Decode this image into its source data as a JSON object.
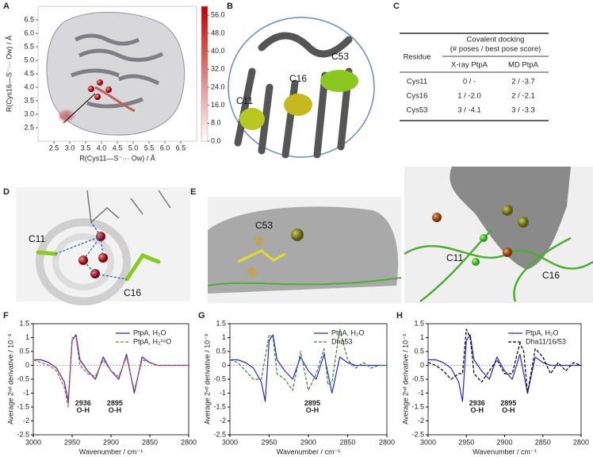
{
  "panel_labels": [
    "A",
    "B",
    "C",
    "D",
    "E",
    "F",
    "G",
    "H"
  ],
  "panel_b": {
    "labels": [
      "C11",
      "C16",
      "C53"
    ]
  },
  "table": {
    "header_group": "Covalent docking",
    "header_sub": "(# poses / best pose score)",
    "columns": [
      "Residue",
      "X-ray PtpA",
      "MD PtpA"
    ],
    "rows": [
      [
        "Cys11",
        "0 / -",
        "2 / -3.7"
      ],
      [
        "Cys16",
        "1 / -2.0",
        "2 / -2.1"
      ],
      [
        "Cys53",
        "3 / -4.1",
        "3 / -3.3"
      ]
    ]
  },
  "panel_d": {
    "labels": [
      "C11",
      "C16"
    ]
  },
  "panel_e": {
    "labels": [
      "C53",
      "C11",
      "C16"
    ]
  },
  "chart_data": [
    {
      "type": "heatmap",
      "xlabel": "R(Cys11—S⁻··· Ow) / Å",
      "ylabel": "R(Cys16—S⁻··· Ow) / Å",
      "xlim": [
        2,
        7
      ],
      "ylim": [
        2,
        7
      ],
      "xticks": [
        2.5,
        {
          "value": 3,
          "label": "3.0"
        },
        3.5,
        {
          "value": 4,
          "label": "4.0"
        },
        4.5,
        {
          "value": 5,
          "label": "5.0"
        },
        5.5,
        {
          "value": 6,
          "label": "6.0"
        },
        6.5
      ],
      "yticks": [
        2.5,
        {
          "value": 3,
          "label": "3.0"
        },
        3.5,
        {
          "value": 4,
          "label": "4.0"
        },
        4.5,
        {
          "value": 5,
          "label": "5.0"
        },
        5.5,
        {
          "value": 6,
          "label": "6.0"
        },
        6.5
      ],
      "clim": [
        0,
        60
      ],
      "cticks": [
        {
          "value": 0,
          "label": "0.0"
        },
        {
          "value": 8,
          "label": "8.0"
        },
        {
          "value": 16,
          "label": "16.0"
        },
        {
          "value": 24,
          "label": "24.0"
        },
        {
          "value": 32,
          "label": "32.0"
        },
        {
          "value": 40,
          "label": "40.0"
        },
        {
          "value": 48,
          "label": "48.0"
        },
        {
          "value": 56,
          "label": "56.0"
        }
      ],
      "colormap": [
        "#ffffff",
        "#c00000"
      ],
      "hotspot": {
        "x": 2.9,
        "y": 2.95,
        "value": 60
      }
    },
    {
      "type": "line",
      "xlabel": "Wavenumber / cm⁻¹",
      "ylabel": "Average 2ⁿᵈ derivative / 10⁻³",
      "xlim": [
        3000,
        2800
      ],
      "xticks": [
        3000,
        2950,
        2900,
        2850,
        2800
      ],
      "ylim": [
        -2.5,
        1.5
      ],
      "yticks": [
        -2.5,
        -2,
        -1.5,
        -1,
        -0.5,
        0,
        0.5,
        1,
        1.5
      ],
      "legend": "upper right",
      "x": [
        3000,
        2990,
        2980,
        2970,
        2960,
        2955,
        2950,
        2945,
        2940,
        2930,
        2920,
        2910,
        2900,
        2890,
        2880,
        2875,
        2870,
        2860,
        2850,
        2840,
        2830,
        2820,
        2810,
        2800
      ],
      "series": [
        {
          "name": "PtpA, H₂O",
          "color": "#2424e0",
          "style": "solid",
          "values": [
            0.2,
            0.2,
            0.1,
            -0.1,
            -0.6,
            -1.3,
            0.9,
            1.1,
            0.2,
            -0.2,
            -0.5,
            0.3,
            -0.2,
            -0.5,
            0.4,
            -0.3,
            -1.0,
            0.3,
            0.1,
            0.0,
            0.0,
            0.0,
            0.0,
            0.0
          ]
        },
        {
          "name": "PtpA, H₂¹⁸O",
          "color": "#e0501e",
          "style": "dashed",
          "values": [
            0.2,
            0.1,
            0.0,
            -0.2,
            -0.8,
            -1.5,
            1.0,
            1.0,
            0.0,
            -0.3,
            -0.4,
            0.2,
            -0.2,
            -0.4,
            0.3,
            -0.3,
            -0.9,
            0.2,
            0.1,
            0.0,
            0.0,
            0.0,
            0.0,
            0.0
          ]
        }
      ],
      "annotations": [
        {
          "wavenumber": 2936,
          "band": "O-H"
        },
        {
          "wavenumber": 2895,
          "band": "O-H"
        }
      ]
    },
    {
      "type": "line",
      "xlabel": "Wavenumber / cm⁻¹",
      "ylabel": "Average 2ⁿᵈ derivative / 10⁻³",
      "xlim": [
        3000,
        2800
      ],
      "xticks": [
        3000,
        2950,
        2900,
        2850,
        2800
      ],
      "ylim": [
        -2.5,
        1.5
      ],
      "yticks": [
        -2.5,
        -2,
        -1.5,
        -1,
        -0.5,
        0,
        0.5,
        1,
        1.5
      ],
      "legend": "upper right",
      "x": [
        3000,
        2990,
        2980,
        2970,
        2960,
        2955,
        2950,
        2945,
        2940,
        2930,
        2920,
        2910,
        2900,
        2890,
        2880,
        2875,
        2870,
        2860,
        2850,
        2840,
        2830,
        2820,
        2810,
        2800
      ],
      "series": [
        {
          "name": "PtpA, H₂O",
          "color": "#2424e0",
          "style": "solid",
          "values": [
            0.2,
            0.2,
            0.1,
            -0.1,
            -0.6,
            -1.3,
            0.9,
            1.1,
            0.2,
            -0.2,
            -0.5,
            0.3,
            -0.2,
            -0.5,
            0.4,
            -0.3,
            -1.0,
            0.3,
            0.1,
            0.0,
            0.0,
            0.0,
            0.0,
            0.0
          ]
        },
        {
          "name": "Dha53",
          "color": "#2e8b2e",
          "style": "dashed",
          "values": [
            0.2,
            0.1,
            -0.2,
            -0.5,
            -0.5,
            0.3,
            1.1,
            1.0,
            -0.3,
            -0.5,
            -0.9,
            0.5,
            -0.9,
            -0.3,
            0.6,
            -0.7,
            -0.6,
            1.3,
            0.2,
            -0.1,
            0.1,
            -0.1,
            0.0,
            0.0
          ]
        }
      ],
      "annotations": [
        {
          "wavenumber": 2895,
          "band": "O-H"
        }
      ]
    },
    {
      "type": "line",
      "xlabel": "Wavenumber / cm⁻¹",
      "ylabel": "Average 2ⁿᵈ derivative / 10⁻³",
      "xlim": [
        3000,
        2800
      ],
      "xticks": [
        3000,
        2950,
        2900,
        2850,
        2800
      ],
      "ylim": [
        -2.5,
        1.5
      ],
      "yticks": [
        -2.5,
        -2,
        -1.5,
        -1,
        -0.5,
        0,
        0.5,
        1,
        1.5
      ],
      "legend": "upper right",
      "x": [
        3000,
        2990,
        2980,
        2970,
        2960,
        2955,
        2950,
        2945,
        2940,
        2930,
        2920,
        2910,
        2900,
        2890,
        2880,
        2875,
        2870,
        2860,
        2850,
        2840,
        2830,
        2820,
        2810,
        2800
      ],
      "series": [
        {
          "name": "PtpA, H₂O",
          "color": "#2424e0",
          "style": "solid",
          "values": [
            0.2,
            0.2,
            0.1,
            -0.1,
            -0.6,
            -1.3,
            0.9,
            1.1,
            0.2,
            -0.2,
            -0.5,
            0.3,
            -0.2,
            -0.5,
            0.4,
            -0.3,
            -1.0,
            0.3,
            0.1,
            0.0,
            0.0,
            0.0,
            0.0,
            0.0
          ]
        },
        {
          "name": "Dha11/16/53",
          "color": "#000000",
          "style": "dashed",
          "values": [
            0.1,
            0.0,
            -0.2,
            -0.5,
            -0.3,
            -0.3,
            1.3,
            1.0,
            -0.3,
            -0.6,
            -0.2,
            0.2,
            -0.3,
            -0.3,
            0.8,
            0.5,
            -1.0,
            0.6,
            0.3,
            -0.3,
            0.1,
            -0.2,
            0.1,
            0.0
          ]
        }
      ],
      "annotations": [
        {
          "wavenumber": 2936,
          "band": "O-H"
        },
        {
          "wavenumber": 2895,
          "band": "O-H"
        }
      ]
    }
  ]
}
